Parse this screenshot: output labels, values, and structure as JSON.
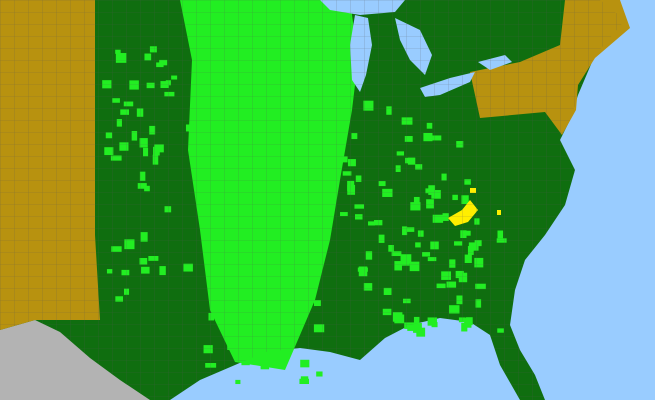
{
  "map": {
    "colors": {
      "water": "#99ccff",
      "present_native": "#0f6e0f",
      "present_highlight": "#22ee22",
      "absent_state": "#b8920f",
      "rare": "#ffee00",
      "foreign_land": "#b3b3b3",
      "boundary": "#555555"
    }
  }
}
